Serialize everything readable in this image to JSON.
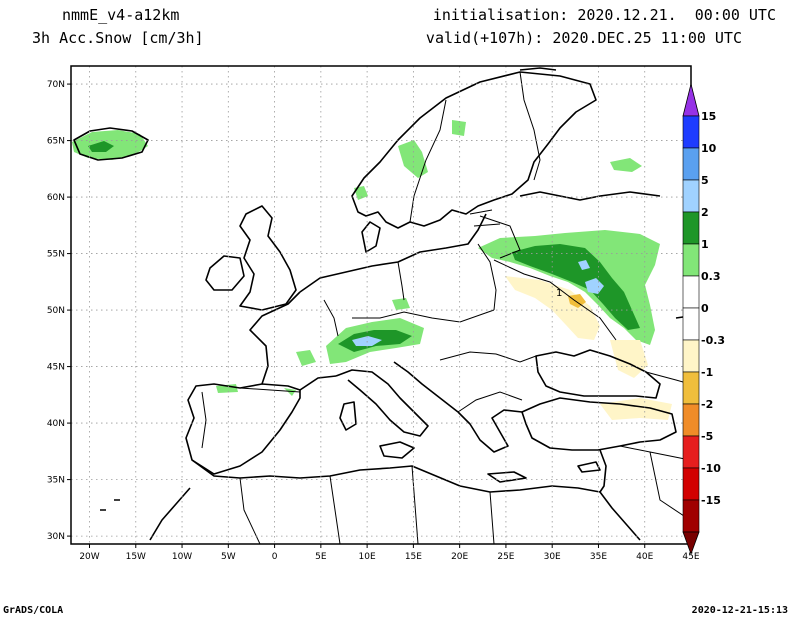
{
  "header": {
    "model": "nmmE_v4-a12km",
    "variable": "3h Acc.Snow [cm/3h]",
    "init": "initialisation: 2020.12.21.  00:00 UTC",
    "valid": "valid(+107h): 2020.DEC.25 11:00 UTC"
  },
  "footer": {
    "left": "GrADS/COLA",
    "right": "2020-12-21-15:13"
  },
  "map": {
    "lon_range": [
      -22,
      45
    ],
    "lat_range": [
      29.3,
      71.6
    ],
    "lon_ticks": [
      {
        "value": -20,
        "label": "20W"
      },
      {
        "value": -15,
        "label": "15W"
      },
      {
        "value": -10,
        "label": "10W"
      },
      {
        "value": -5,
        "label": "5W"
      },
      {
        "value": 0,
        "label": "0"
      },
      {
        "value": 5,
        "label": "5E"
      },
      {
        "value": 10,
        "label": "10E"
      },
      {
        "value": 15,
        "label": "15E"
      },
      {
        "value": 20,
        "label": "20E"
      },
      {
        "value": 25,
        "label": "25E"
      },
      {
        "value": 30,
        "label": "30E"
      },
      {
        "value": 35,
        "label": "35E"
      },
      {
        "value": 40,
        "label": "40E"
      },
      {
        "value": 45,
        "label": "45E"
      }
    ],
    "lat_ticks": [
      {
        "value": 30,
        "label": "30N"
      },
      {
        "value": 35,
        "label": "35N"
      },
      {
        "value": 40,
        "label": "40N"
      },
      {
        "value": 45,
        "label": "45N"
      },
      {
        "value": 50,
        "label": "50N"
      },
      {
        "value": 55,
        "label": "55N"
      },
      {
        "value": 60,
        "label": "60N"
      },
      {
        "value": 65,
        "label": "65N"
      },
      {
        "value": 70,
        "label": "70N"
      }
    ],
    "grid": true,
    "field_label": "1"
  },
  "colorbar": {
    "labels": [
      "15",
      "10",
      "5",
      "2",
      "1",
      "0.3",
      "0",
      "-0.3",
      "-1",
      "-2",
      "-5",
      "-10",
      "-15"
    ],
    "colors": [
      "#1e3cff",
      "#5aa0f0",
      "#a0d2ff",
      "#1e9628",
      "#82e678",
      "#ffffff",
      "#ffffff",
      "#fff5c8",
      "#f0be3c",
      "#f08c28",
      "#e61e1e",
      "#d20000",
      "#a00000"
    ],
    "top_color": "#9632e6",
    "bottom_color": "#780000"
  },
  "colors": {
    "green_light": "#82e678",
    "green_dark": "#1e9628",
    "blue_light": "#a0d2ff",
    "yellow_light": "#fff5c8",
    "orange": "#f0be3c"
  }
}
